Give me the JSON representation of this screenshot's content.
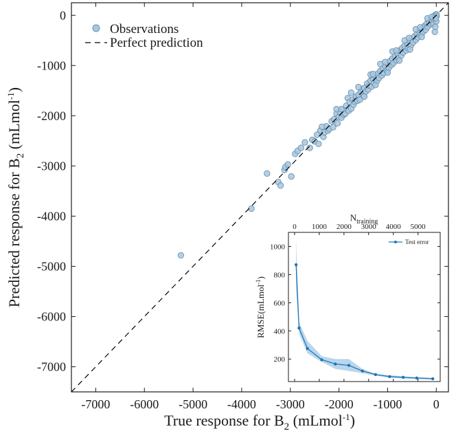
{
  "chart_data": [
    {
      "type": "scatter",
      "xlabel": "True response for B",
      "xlabel_sub": "2",
      "xlabel_unit": " (mLmol",
      "xlabel_unit_sup": "-1",
      "xlabel_unit_end": ")",
      "ylabel": "Predicted response for B",
      "ylabel_sub": "2",
      "ylabel_unit": " (mLmol",
      "ylabel_unit_sup": "-1",
      "ylabel_unit_end": ")",
      "xlim": [
        -7500,
        250
      ],
      "ylim": [
        -7500,
        250
      ],
      "xticks": [
        -7000,
        -6000,
        -5000,
        -4000,
        -3000,
        -2000,
        -1000,
        0
      ],
      "yticks": [
        -7000,
        -6000,
        -5000,
        -4000,
        -3000,
        -2000,
        -1000,
        0
      ],
      "tick_labels_x": [
        "-7000",
        "-6000",
        "-5000",
        "-4000",
        "-3000",
        "-2000",
        "-1000",
        "0"
      ],
      "tick_labels_y": [
        "-7000",
        "-6000",
        "-5000",
        "-4000",
        "-3000",
        "-2000",
        "-1000",
        "0"
      ],
      "legend": {
        "placement": "top-left",
        "entries": [
          {
            "label": "Observations",
            "marker": "circle"
          },
          {
            "label": "Perfect prediction",
            "marker": "dashed-line"
          }
        ]
      },
      "marker_color": "#a8c8e0",
      "marker_edge": "#6a90ad",
      "line_color": "#000000",
      "series": [
        {
          "name": "Observations",
          "points": [
            [
              -5250,
              -4780
            ],
            [
              -3800,
              -3850
            ],
            [
              -3480,
              -3150
            ],
            [
              -3250,
              -3320
            ],
            [
              -3200,
              -3390
            ],
            [
              -3120,
              -3080
            ],
            [
              -3100,
              -3020
            ],
            [
              -3050,
              -2970
            ],
            [
              -2980,
              -3210
            ],
            [
              -2900,
              -2760
            ],
            [
              -2850,
              -2700
            ],
            [
              -2780,
              -2640
            ],
            [
              -2700,
              -2530
            ],
            [
              -2600,
              -2640
            ],
            [
              -2550,
              -2480
            ],
            [
              -2500,
              -2510
            ],
            [
              -2450,
              -2380
            ],
            [
              -2420,
              -2560
            ],
            [
              -2380,
              -2290
            ],
            [
              -2320,
              -2420
            ],
            [
              -2300,
              -2330
            ],
            [
              -2260,
              -2210
            ],
            [
              -2230,
              -2300
            ],
            [
              -2200,
              -2260
            ],
            [
              -2150,
              -2110
            ],
            [
              -2120,
              -2230
            ],
            [
              -2100,
              -2070
            ],
            [
              -2050,
              -1960
            ],
            [
              -2030,
              -2150
            ],
            [
              -2000,
              -2020
            ],
            [
              -1980,
              -1920
            ],
            [
              -1950,
              -2040
            ],
            [
              -1920,
              -1880
            ],
            [
              -1900,
              -1980
            ],
            [
              -1870,
              -1960
            ],
            [
              -1850,
              -1800
            ],
            [
              -1820,
              -1650
            ],
            [
              -1800,
              -1900
            ],
            [
              -1780,
              -1730
            ],
            [
              -1750,
              -1860
            ],
            [
              -1720,
              -1680
            ],
            [
              -1700,
              -1780
            ],
            [
              -1680,
              -1720
            ],
            [
              -1650,
              -1620
            ],
            [
              -1620,
              -1700
            ],
            [
              -1600,
              -1580
            ],
            [
              -1570,
              -1680
            ],
            [
              -1550,
              -1520
            ],
            [
              -1520,
              -1470
            ],
            [
              -1500,
              -1600
            ],
            [
              -1480,
              -1450
            ],
            [
              -1450,
              -1520
            ],
            [
              -1420,
              -1360
            ],
            [
              -1400,
              -1480
            ],
            [
              -1380,
              -1400
            ],
            [
              -1350,
              -1300
            ],
            [
              -1330,
              -1420
            ],
            [
              -1300,
              -1270
            ],
            [
              -1280,
              -1350
            ],
            [
              -1250,
              -1210
            ],
            [
              -1220,
              -1310
            ],
            [
              -1200,
              -1160
            ],
            [
              -1180,
              -1250
            ],
            [
              -1150,
              -1110
            ],
            [
              -1120,
              -1200
            ],
            [
              -1100,
              -1060
            ],
            [
              -1080,
              -1150
            ],
            [
              -1050,
              -1010
            ],
            [
              -1020,
              -1100
            ],
            [
              -1000,
              -960
            ],
            [
              -980,
              -1050
            ],
            [
              -950,
              -910
            ],
            [
              -920,
              -990
            ],
            [
              -900,
              -860
            ],
            [
              -880,
              -950
            ],
            [
              -850,
              -810
            ],
            [
              -820,
              -900
            ],
            [
              -800,
              -760
            ],
            [
              -780,
              -850
            ],
            [
              -750,
              -700
            ],
            [
              -720,
              -800
            ],
            [
              -700,
              -650
            ],
            [
              -680,
              -740
            ],
            [
              -650,
              -610
            ],
            [
              -620,
              -700
            ],
            [
              -600,
              -560
            ],
            [
              -580,
              -650
            ],
            [
              -550,
              -510
            ],
            [
              -520,
              -600
            ],
            [
              -500,
              -460
            ],
            [
              -480,
              -540
            ],
            [
              -450,
              -420
            ],
            [
              -420,
              -490
            ],
            [
              -400,
              -370
            ],
            [
              -380,
              -440
            ],
            [
              -350,
              -320
            ],
            [
              -320,
              -390
            ],
            [
              -300,
              -270
            ],
            [
              -280,
              -340
            ],
            [
              -250,
              -220
            ],
            [
              -220,
              -290
            ],
            [
              -200,
              -170
            ],
            [
              -180,
              -230
            ],
            [
              -150,
              -130
            ],
            [
              -120,
              -180
            ],
            [
              -100,
              -80
            ],
            [
              -80,
              -120
            ],
            [
              -60,
              -40
            ],
            [
              -40,
              -80
            ],
            [
              -20,
              10
            ],
            [
              -10,
              -30
            ],
            [
              0,
              20
            ],
            [
              10,
              -10
            ],
            [
              -1750,
              -1540
            ],
            [
              -1600,
              -1430
            ],
            [
              -1350,
              -1180
            ],
            [
              -1150,
              -970
            ],
            [
              -900,
              -720
            ],
            [
              -650,
              -500
            ],
            [
              -420,
              -280
            ],
            [
              -180,
              -60
            ],
            [
              -2050,
              -1870
            ],
            [
              -1480,
              -1620
            ],
            [
              -1250,
              -1390
            ],
            [
              -1000,
              -1140
            ],
            [
              -760,
              -900
            ],
            [
              -540,
              -680
            ],
            [
              -300,
              -430
            ],
            [
              -60,
              -170
            ],
            [
              -2350,
              -2220
            ],
            [
              -1950,
              -1870
            ],
            [
              -1300,
              -1170
            ],
            [
              -1050,
              -930
            ],
            [
              -820,
              -700
            ],
            [
              -560,
              -450
            ],
            [
              -330,
              -240
            ],
            [
              -90,
              -30
            ],
            [
              -20,
              -230
            ],
            [
              -30,
              -330
            ],
            [
              0,
              -120
            ],
            [
              -10,
              -60
            ]
          ]
        },
        {
          "name": "Perfect prediction",
          "line": [
            [
              -7500,
              -7500
            ],
            [
              250,
              250
            ]
          ]
        }
      ]
    },
    {
      "type": "line",
      "xlabel": "N",
      "xlabel_sub": "training",
      "ylabel": "RMSE(mLmol",
      "ylabel_sup": "-1",
      "ylabel_end": ")",
      "xlim": [
        -250,
        5900
      ],
      "ylim": [
        40,
        1100
      ],
      "xticks": [
        0,
        1000,
        2000,
        3000,
        4000,
        5000
      ],
      "yticks": [
        200,
        400,
        600,
        800,
        1000
      ],
      "tick_labels_x": [
        "0",
        "1000",
        "2000",
        "3000",
        "4000",
        "5000"
      ],
      "tick_labels_y": [
        "200",
        "400",
        "600",
        "800",
        "1000"
      ],
      "legend": {
        "placement": "top-right",
        "entries": [
          {
            "label": "Test error",
            "marker": "line-dot"
          }
        ]
      },
      "line_color": "#1f77b4",
      "band_color": "#9cc5e6",
      "x": [
        60,
        180,
        520,
        1100,
        1650,
        2200,
        2750,
        3280,
        3850,
        4400,
        4950,
        5600
      ],
      "series": [
        {
          "name": "Test error",
          "values": [
            870,
            420,
            275,
            195,
            165,
            155,
            115,
            90,
            75,
            70,
            65,
            60
          ],
          "upper": [
            1050,
            460,
            330,
            220,
            200,
            200,
            130,
            95,
            85,
            77,
            72,
            66
          ],
          "lower": [
            700,
            380,
            240,
            180,
            130,
            115,
            100,
            82,
            68,
            62,
            58,
            54
          ]
        }
      ]
    }
  ]
}
